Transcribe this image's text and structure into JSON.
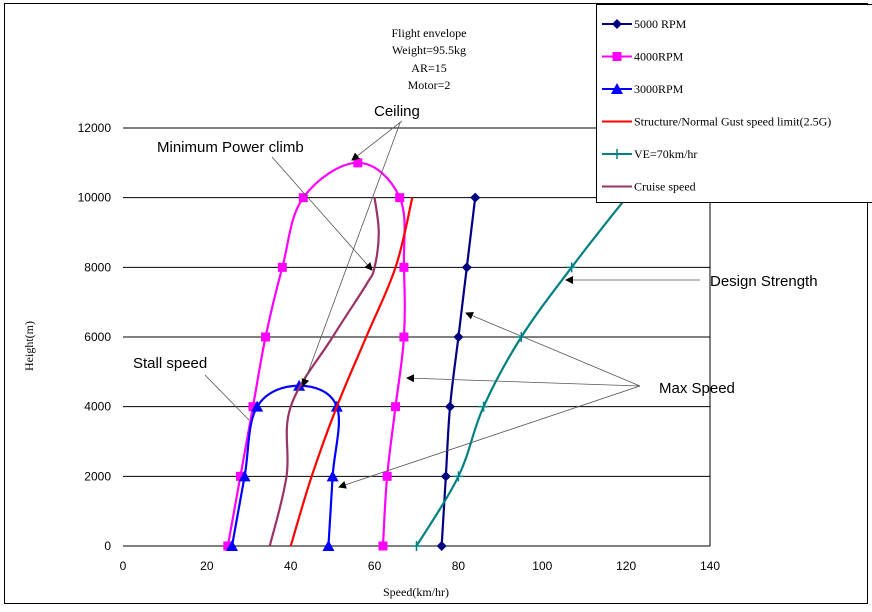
{
  "chart_data": {
    "type": "line",
    "title_lines": [
      "Flight envelope",
      "Weight=95.5kg",
      "AR=15",
      "Motor=2"
    ],
    "xlabel": "Speed(km/hr)",
    "ylabel": "Height(m)",
    "xlim": [
      0,
      140
    ],
    "ylim": [
      0,
      12000
    ],
    "xticks": [
      0,
      20,
      40,
      60,
      80,
      100,
      120,
      140
    ],
    "yticks": [
      0,
      2000,
      4000,
      6000,
      8000,
      10000,
      12000
    ],
    "grid": "horizontal",
    "legend_position": "top-right",
    "series": [
      {
        "name": "5000 RPM",
        "color": "#000080",
        "marker": "diamond",
        "points": [
          [
            76,
            0
          ],
          [
            77,
            2000
          ],
          [
            78,
            4000
          ],
          [
            80,
            6000
          ],
          [
            82,
            8000
          ],
          [
            84,
            10000
          ]
        ]
      },
      {
        "name": "4000RPM",
        "color": "#ff00ff",
        "marker": "square",
        "points": [
          [
            62,
            0
          ],
          [
            63,
            2000
          ],
          [
            65,
            4000
          ],
          [
            67,
            6000
          ],
          [
            67,
            8000
          ],
          [
            66,
            10000
          ],
          [
            56,
            11000
          ],
          [
            43,
            10000
          ],
          [
            38,
            8000
          ],
          [
            34,
            6000
          ],
          [
            31,
            4000
          ],
          [
            28,
            2000
          ],
          [
            25,
            0
          ]
        ]
      },
      {
        "name": "3000RPM",
        "color": "#0000ff",
        "marker": "triangle",
        "points": [
          [
            49,
            0
          ],
          [
            50,
            2000
          ],
          [
            51,
            4000
          ],
          [
            42,
            4600
          ],
          [
            32,
            4000
          ],
          [
            29,
            2000
          ],
          [
            26,
            0
          ]
        ]
      },
      {
        "name": "Structure/Normal Gust speed limit(2.5G)",
        "color": "#ff0000",
        "marker": "none",
        "points": [
          [
            40,
            0
          ],
          [
            45,
            2000
          ],
          [
            51,
            4000
          ],
          [
            58,
            6000
          ],
          [
            65,
            8000
          ],
          [
            69,
            10000
          ]
        ]
      },
      {
        "name": "VE=70km/hr",
        "color": "#008080",
        "marker": "plus",
        "points": [
          [
            70,
            0
          ],
          [
            80,
            2000
          ],
          [
            86,
            4000
          ],
          [
            95,
            6000
          ],
          [
            107,
            8000
          ],
          [
            120,
            10000
          ]
        ]
      },
      {
        "name": "Cruise speed",
        "color": "#993366",
        "marker": "none",
        "points": [
          [
            35,
            0
          ],
          [
            39,
            2000
          ],
          [
            40,
            4000
          ],
          [
            50,
            6000
          ],
          [
            58,
            7500
          ],
          [
            60,
            8000
          ],
          [
            61,
            9000
          ],
          [
            60,
            10000
          ]
        ]
      }
    ],
    "annotations": [
      {
        "text": "Ceiling"
      },
      {
        "text": "Minimum Power climb"
      },
      {
        "text": "Stall speed"
      },
      {
        "text": "Design Strength"
      },
      {
        "text": "Max Speed"
      }
    ]
  }
}
